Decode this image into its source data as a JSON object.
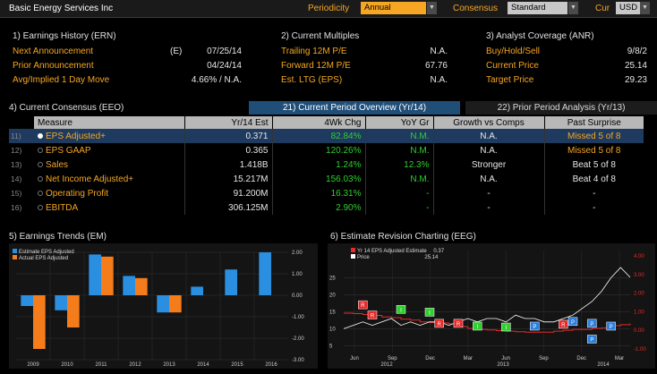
{
  "header": {
    "company": "Basic Energy Services Inc",
    "periodicity_label": "Periodicity",
    "periodicity_value": "Annual",
    "consensus_label": "Consensus",
    "consensus_value": "Standard",
    "cur_label": "Cur",
    "cur_value": "USD"
  },
  "earnings_history": {
    "title": "1) Earnings History (ERN)",
    "rows": [
      {
        "label": "Next Announcement",
        "prefix": "(E)",
        "value": "07/25/14"
      },
      {
        "label": "Prior Announcement",
        "prefix": "",
        "value": "04/24/14"
      },
      {
        "label": "Avg/Implied 1 Day Move",
        "prefix": "",
        "value": "4.66% / N.A."
      }
    ]
  },
  "current_multiples": {
    "title": "2) Current Multiples",
    "rows": [
      {
        "label": "Trailing 12M P/E",
        "value": "N.A."
      },
      {
        "label": "Forward 12M P/E",
        "value": "67.76"
      },
      {
        "label": "Est. LTG (EPS)",
        "value": "N.A."
      }
    ]
  },
  "analyst_coverage": {
    "title": "3) Analyst Coverage (ANR)",
    "rows": [
      {
        "label": "Buy/Hold/Sell",
        "value": "9/8/2"
      },
      {
        "label": "Current Price",
        "value": "25.14"
      },
      {
        "label": "Target Price",
        "value": "29.23"
      }
    ]
  },
  "consensus": {
    "title": "4) Current Consensus (EEO)",
    "tab_current": "21) Current Period Overview (Yr/14)",
    "tab_prior": "22) Prior Period Analysis (Yr/13)",
    "columns": [
      "Measure",
      "Yr/14 Est",
      "4Wk Chg",
      "YoY Gr",
      "Growth vs Comps",
      "Past Surprise"
    ],
    "rows": [
      {
        "num": "11)",
        "measure": "EPS Adjusted+",
        "est": "0.371",
        "chg": "82.84%",
        "yoy": "N.M.",
        "comps": "N.A.",
        "surprise": "Missed 5 of 8",
        "surprise_color": "#f5a623"
      },
      {
        "num": "12)",
        "measure": "EPS GAAP",
        "est": "0.365",
        "chg": "120.26%",
        "yoy": "N.M.",
        "comps": "N.A.",
        "surprise": "Missed 5 of 8",
        "surprise_color": "#f5a623"
      },
      {
        "num": "13)",
        "measure": "Sales",
        "est": "1.418B",
        "chg": "1.24%",
        "yoy": "12.3%",
        "comps": "Stronger",
        "surprise": "Beat 5 of 8",
        "surprise_color": "#e6e6e6"
      },
      {
        "num": "14)",
        "measure": "Net Income Adjusted+",
        "est": "15.217M",
        "chg": "156.03%",
        "yoy": "N.M.",
        "comps": "N.A.",
        "surprise": "Beat 4 of 8",
        "surprise_color": "#e6e6e6"
      },
      {
        "num": "15)",
        "measure": "Operating Profit",
        "est": "91.200M",
        "chg": "16.31%",
        "yoy": "-",
        "comps": "-",
        "surprise": "-",
        "surprise_color": "#e6e6e6"
      },
      {
        "num": "16)",
        "measure": "EBITDA",
        "est": "306.125M",
        "chg": "2.90%",
        "yoy": "-",
        "comps": "-",
        "surprise": "-",
        "surprise_color": "#e6e6e6"
      }
    ]
  },
  "colors": {
    "orange": "#f5a623",
    "green": "#2fcf2f",
    "blue_bar": "#2a8fe0",
    "orange_bar": "#f57c1a",
    "price_line": "#ffffff",
    "estimate_line": "#e52a2a"
  },
  "chart_data": [
    {
      "type": "bar",
      "title": "5) Earnings Trends (EM)",
      "categories": [
        "2009",
        "2010",
        "2011",
        "2012",
        "2013",
        "2014",
        "2015",
        "2016"
      ],
      "series": [
        {
          "name": "Estimate EPS Adjusted",
          "values": [
            -0.5,
            -0.7,
            1.9,
            0.9,
            -0.8,
            0.4,
            1.2,
            2.0
          ]
        },
        {
          "name": "Actual EPS Adjusted",
          "values": [
            -2.5,
            -1.5,
            1.8,
            0.8,
            -0.8,
            null,
            null,
            null
          ]
        }
      ],
      "ylim": [
        -3.0,
        2.0
      ],
      "yticks": [
        "2.00",
        "1.00",
        "0.00",
        "-1.00",
        "-2.00",
        "-3.00"
      ],
      "grid": true,
      "legend": "top-left"
    },
    {
      "type": "line",
      "title": "6) Estimate Revision Charting (EEG)",
      "series": [
        {
          "name": "Yr 14 EPS Adjusted Estimate",
          "last": "0.37",
          "axis": "right",
          "values": [
            0.92,
            0.9,
            0.85,
            0.8,
            0.72,
            0.68,
            0.6,
            0.55,
            0.45,
            0.42,
            0.4,
            0.35,
            0.2,
            0.1,
            0.05,
            0.02,
            -0.02,
            -0.05,
            -0.08,
            -0.1,
            -0.1,
            -0.1,
            -0.05,
            0.0,
            0.05,
            0.05,
            0.1,
            0.12,
            0.25,
            0.3,
            0.37
          ]
        },
        {
          "name": "Price",
          "last": "25.14",
          "axis": "left",
          "values": [
            10,
            11,
            12,
            11,
            12,
            13,
            11,
            12,
            11,
            12,
            12,
            11,
            12,
            13,
            12,
            13,
            13,
            12,
            14,
            13,
            13,
            12,
            12,
            13,
            14,
            16,
            18,
            21,
            25,
            28,
            25.14
          ]
        }
      ],
      "yticks_left": [
        "25",
        "20",
        "15",
        "10",
        "5"
      ],
      "yticks_right": [
        "4.00",
        "3.00",
        "2.00",
        "1.00",
        "0.00",
        "-1.00"
      ],
      "ylim_left": [
        3,
        33
      ],
      "ylim_right": [
        -1.2,
        4.3
      ],
      "xticks": [
        "Jun",
        "Sep",
        "Dec",
        "Mar",
        "Jun",
        "Sep",
        "Dec",
        "Mar"
      ],
      "year_labels": [
        "2012",
        "2013",
        "2014"
      ],
      "annotations": [
        {
          "label": "R",
          "color": "#e52a2a",
          "x_index": 2,
          "y": 1.35
        },
        {
          "label": "R",
          "color": "#e52a2a",
          "x_index": 3,
          "y": 0.8
        },
        {
          "label": "R",
          "color": "#e52a2a",
          "x_index": 10,
          "y": 0.35
        },
        {
          "label": "R",
          "color": "#e52a2a",
          "x_index": 12,
          "y": 0.35
        },
        {
          "label": "R",
          "color": "#e52a2a",
          "x_index": 23,
          "y": 0.3
        },
        {
          "label": "I",
          "color": "#2fcf2f",
          "x_index": 6,
          "y": 1.1
        },
        {
          "label": "I",
          "color": "#2fcf2f",
          "x_index": 9,
          "y": 0.95
        },
        {
          "label": "I",
          "color": "#2fcf2f",
          "x_index": 14,
          "y": 0.2
        },
        {
          "label": "I",
          "color": "#2fcf2f",
          "x_index": 17,
          "y": 0.15
        },
        {
          "label": "P",
          "color": "#2a7fdc",
          "x_index": 20,
          "y": 0.2
        },
        {
          "label": "P",
          "color": "#2a7fdc",
          "x_index": 24,
          "y": 0.45
        },
        {
          "label": "P",
          "color": "#2a7fdc",
          "x_index": 26,
          "y": 0.35
        },
        {
          "label": "P",
          "color": "#2a7fdc",
          "x_index": 26,
          "y": -0.5
        },
        {
          "label": "P",
          "color": "#2a7fdc",
          "x_index": 28,
          "y": 0.2
        }
      ],
      "grid": true,
      "legend": "top-left"
    }
  ]
}
